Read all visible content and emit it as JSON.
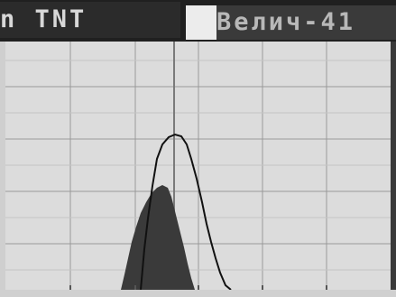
{
  "header": {
    "left_title": "n TNT",
    "right_title": "Велич-41"
  },
  "colors": {
    "grid": "#9a9a9a",
    "fill": "#3a3a3a",
    "outline": "#111111",
    "marker": "#7a7a7a"
  }
}
